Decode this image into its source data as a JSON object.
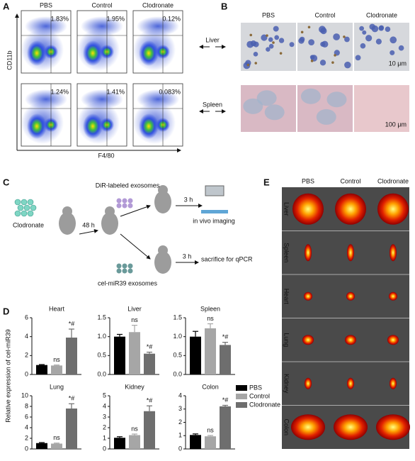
{
  "panels": {
    "A": {
      "label": "A",
      "columns": [
        "PBS",
        "Control",
        "Clodronate"
      ],
      "percent_top": [
        "1.83%",
        "1.95%",
        "0.12%"
      ],
      "percent_bottom": [
        "1.24%",
        "1.41%",
        "0.083%"
      ],
      "y_axis": "CD11b",
      "x_axis": "F4/80"
    },
    "B": {
      "label": "B",
      "columns": [
        "PBS",
        "Control",
        "Clodronate"
      ],
      "rows": [
        "Liver",
        "Spleen"
      ],
      "scale_bars": [
        "10 μm",
        "100 μm"
      ]
    },
    "C": {
      "label": "C",
      "drug": "Clodronate",
      "time1": "48 h",
      "branch1": "DiR-labeled exosomes",
      "time2": "3 h",
      "result1": "in vivo imaging",
      "branch2": "cel-miR39 exosomes",
      "time3": "3 h",
      "result2": "sacrifice for qPCR"
    },
    "D": {
      "label": "D",
      "y_axis": "Relative expression of cel-miR39",
      "legend": [
        {
          "name": "PBS",
          "color": "#000000"
        },
        {
          "name": "Control",
          "color": "#a6a6a6"
        },
        {
          "name": "Clodronate",
          "color": "#6e6e6e"
        }
      ]
    },
    "E": {
      "label": "E",
      "columns": [
        "PBS",
        "Control",
        "Clodronate"
      ],
      "rows": [
        "Liver",
        "Spleen",
        "Heart",
        "Lung",
        "Kidney",
        "Colon"
      ]
    }
  },
  "chart_data": [
    {
      "type": "bar",
      "title": "Heart",
      "values": [
        1.0,
        0.95,
        3.9
      ],
      "errors": [
        0.05,
        0.05,
        0.9
      ],
      "annotations": [
        "ns",
        "*#"
      ],
      "ylim": [
        0,
        6
      ],
      "yticks": [
        0,
        2,
        4,
        6
      ]
    },
    {
      "type": "bar",
      "title": "Liver",
      "values": [
        1.0,
        1.12,
        0.55
      ],
      "errors": [
        0.06,
        0.18,
        0.04
      ],
      "annotations": [
        "ns",
        "*#"
      ],
      "ylim": [
        0,
        1.5
      ],
      "yticks": [
        {
          "value": 0,
          "label": "0.0"
        },
        0.5,
        {
          "value": 1,
          "label": "1.0"
        },
        1.5
      ]
    },
    {
      "type": "bar",
      "title": "Spleen",
      "values": [
        1.0,
        1.22,
        0.78
      ],
      "errors": [
        0.14,
        0.12,
        0.07
      ],
      "annotations": [
        "ns",
        "*#"
      ],
      "ylim": [
        0,
        1.5
      ],
      "yticks": [
        {
          "value": 0,
          "label": "0.0"
        },
        0.5,
        {
          "value": 1,
          "label": "1.0"
        },
        1.5
      ]
    },
    {
      "type": "bar",
      "title": "Lung",
      "values": [
        1.1,
        1.0,
        7.6
      ],
      "errors": [
        0.1,
        0.1,
        0.9
      ],
      "annotations": [
        "ns",
        "*#"
      ],
      "ylim": [
        0,
        10
      ],
      "yticks": [
        0,
        2,
        4,
        6,
        8,
        10
      ]
    },
    {
      "type": "bar",
      "title": "Kidney",
      "values": [
        1.05,
        1.3,
        3.55
      ],
      "errors": [
        0.1,
        0.1,
        0.5
      ],
      "annotations": [
        "ns",
        "*#"
      ],
      "ylim": [
        0,
        5
      ],
      "yticks": [
        0,
        1,
        2,
        3,
        4,
        5
      ]
    },
    {
      "type": "bar",
      "title": "Colon",
      "values": [
        1.05,
        0.95,
        3.2
      ],
      "errors": [
        0.08,
        0.06,
        0.08
      ],
      "annotations": [
        "ns",
        "*#"
      ],
      "ylim": [
        0,
        4
      ],
      "yticks": [
        0,
        1,
        2,
        3,
        4
      ]
    }
  ]
}
